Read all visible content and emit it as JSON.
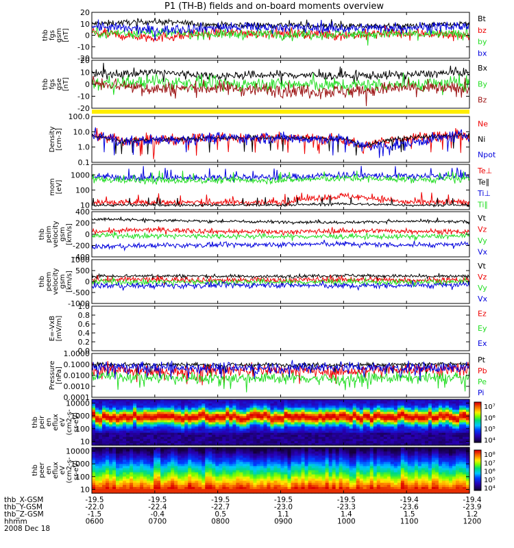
{
  "title": "P1  (TH-B) fields and on-board moments overview",
  "colors": {
    "black": "#000000",
    "red": "#ee0000",
    "green": "#22dd22",
    "blue": "#0000dd",
    "darkred": "#9b1010",
    "yellow": "#ffee00",
    "navy": "#000088"
  },
  "chart_data": [
    {
      "id": "fgs-gsm",
      "type": "line",
      "ylabel_lines": [
        "thb",
        "fgs",
        "gsm",
        "[nT]"
      ],
      "ylim": [
        -20,
        20
      ],
      "yticks": [
        "20",
        "10",
        "0",
        "-10",
        "-20"
      ],
      "series": [
        {
          "name": "Bt",
          "color": "#000000",
          "x": [
            6,
            7,
            8,
            9,
            10,
            11,
            12
          ],
          "values": [
            10,
            12,
            9,
            9,
            8,
            8,
            10
          ]
        },
        {
          "name": "bz",
          "color": "#ee0000",
          "x": [
            6,
            7,
            8,
            9,
            10,
            11,
            12
          ],
          "values": [
            2,
            -2,
            2,
            2,
            0,
            2,
            0
          ]
        },
        {
          "name": "by",
          "color": "#22dd22",
          "x": [
            6,
            7,
            8,
            9,
            10,
            11,
            12
          ],
          "values": [
            2,
            2,
            1,
            1,
            1,
            1,
            1
          ]
        },
        {
          "name": "bx",
          "color": "#0000dd",
          "x": [
            6,
            7,
            8,
            9,
            10,
            11,
            12
          ],
          "values": [
            8,
            4,
            7,
            7,
            6,
            7,
            8
          ]
        }
      ]
    },
    {
      "id": "fgs-gse",
      "type": "line",
      "ylabel_lines": [
        "thb",
        "fgs",
        "gse",
        "[nT]"
      ],
      "ylim": [
        -20,
        20
      ],
      "yticks": [
        "20",
        "10",
        "0",
        "-10",
        "-20"
      ],
      "series": [
        {
          "name": "Bx",
          "color": "#000000",
          "x": [
            6,
            7,
            8,
            9,
            10,
            11,
            12
          ],
          "values": [
            8,
            10,
            7,
            8,
            7,
            8,
            10
          ]
        },
        {
          "name": "By",
          "color": "#22dd22",
          "x": [
            6,
            7,
            8,
            9,
            10,
            11,
            12
          ],
          "values": [
            0,
            2,
            0,
            0,
            -1,
            0,
            1
          ]
        },
        {
          "name": "Bz",
          "color": "#9b1010",
          "x": [
            6,
            7,
            8,
            9,
            10,
            11,
            12
          ],
          "values": [
            2,
            -4,
            -3,
            -5,
            -6,
            -3,
            -4
          ]
        }
      ]
    },
    {
      "id": "density",
      "type": "line",
      "scale": "log",
      "ylabel_lines": [
        "Density",
        "[cm-3]"
      ],
      "ylim": [
        0.1,
        100
      ],
      "yticks": [
        "100.0",
        "10.0",
        "1.0",
        "0.1"
      ],
      "series": [
        {
          "name": "Ne",
          "color": "#ee0000",
          "x": [
            6,
            6.5,
            7,
            8,
            9,
            10,
            10.3,
            11,
            12
          ],
          "values": [
            6,
            2,
            3,
            4,
            4,
            3,
            0.8,
            4,
            6
          ]
        },
        {
          "name": "Ni",
          "color": "#000000",
          "x": [
            6,
            6.5,
            7,
            8,
            9,
            10,
            10.3,
            11,
            12
          ],
          "values": [
            5,
            2.5,
            3,
            4,
            4,
            3.5,
            1,
            4,
            6
          ]
        },
        {
          "name": "Npot",
          "color": "#0000dd",
          "x": [
            6,
            6.5,
            7,
            8,
            9,
            10,
            10.3,
            11,
            12
          ],
          "values": [
            6,
            2,
            3,
            4,
            4,
            3,
            1,
            1.5,
            6
          ]
        }
      ]
    },
    {
      "id": "temperature",
      "type": "line",
      "scale": "log",
      "ylabel_lines": [
        "mom",
        "[eV]"
      ],
      "ylim": [
        5,
        5000
      ],
      "yticks": [
        "1000",
        "100",
        "10"
      ],
      "series": [
        {
          "name": "Te⊥",
          "color": "#ee0000",
          "x": [
            6,
            7,
            8,
            9,
            10,
            11,
            12
          ],
          "values": [
            15,
            15,
            15,
            15,
            40,
            15,
            15
          ]
        },
        {
          "name": "Te∥",
          "color": "#000000",
          "x": [
            6,
            7,
            8,
            9,
            10,
            11,
            12
          ],
          "values": [
            10,
            10,
            10,
            10,
            12,
            10,
            10
          ]
        },
        {
          "name": "Ti⊥",
          "color": "#0000dd",
          "x": [
            6,
            7,
            8,
            9,
            10,
            11,
            12
          ],
          "values": [
            800,
            600,
            700,
            700,
            1000,
            800,
            800
          ]
        },
        {
          "name": "Ti∥",
          "color": "#22dd22",
          "x": [
            6,
            7,
            8,
            9,
            10,
            11,
            12
          ],
          "values": [
            500,
            400,
            450,
            450,
            600,
            500,
            500
          ]
        }
      ]
    },
    {
      "id": "peim-velocity",
      "type": "line",
      "ylabel_lines": [
        "thb",
        "peim",
        "velocity",
        "gsm",
        "[km/s]"
      ],
      "ylim": [
        -400,
        400
      ],
      "yticks": [
        "400",
        "200",
        "0",
        "-200",
        "-400"
      ],
      "series": [
        {
          "name": "Vt",
          "color": "#000000",
          "x": [
            6,
            7,
            8,
            9,
            10,
            11,
            12
          ],
          "values": [
            270,
            250,
            230,
            220,
            210,
            230,
            220
          ]
        },
        {
          "name": "Vz",
          "color": "#ee0000",
          "x": [
            6,
            7,
            8,
            9,
            10,
            11,
            12
          ],
          "values": [
            50,
            80,
            50,
            40,
            60,
            60,
            40
          ]
        },
        {
          "name": "Vy",
          "color": "#22dd22",
          "x": [
            6,
            7,
            8,
            9,
            10,
            11,
            12
          ],
          "values": [
            -20,
            -30,
            -30,
            -40,
            -40,
            -40,
            -30
          ]
        },
        {
          "name": "Vx",
          "color": "#0000dd",
          "x": [
            6,
            7,
            8,
            9,
            10,
            11,
            12
          ],
          "values": [
            -220,
            -200,
            -190,
            -180,
            -170,
            -190,
            -180
          ]
        }
      ]
    },
    {
      "id": "peem-velocity",
      "type": "line",
      "ylabel_lines": [
        "thb",
        "peem",
        "velocity",
        "gsm",
        "[km/s]"
      ],
      "ylim": [
        -1000,
        1000
      ],
      "yticks": [
        "1000",
        "500",
        "0",
        "-500",
        "-1000"
      ],
      "series": [
        {
          "name": "Vt",
          "color": "#000000",
          "x": [
            6,
            7,
            8,
            9,
            10,
            11,
            12
          ],
          "values": [
            250,
            260,
            240,
            230,
            280,
            240,
            230
          ]
        },
        {
          "name": "Vz",
          "color": "#ee0000",
          "x": [
            6,
            7,
            8,
            9,
            10,
            11,
            12
          ],
          "values": [
            80,
            90,
            70,
            60,
            100,
            70,
            60
          ]
        },
        {
          "name": "Vy",
          "color": "#22dd22",
          "x": [
            6,
            7,
            8,
            9,
            10,
            11,
            12
          ],
          "values": [
            -20,
            -30,
            -20,
            -30,
            -20,
            -30,
            -20
          ]
        },
        {
          "name": "Vx",
          "color": "#0000dd",
          "x": [
            6,
            7,
            8,
            9,
            10,
            11,
            12
          ],
          "values": [
            -180,
            -200,
            -170,
            -160,
            -200,
            -170,
            -160
          ]
        }
      ]
    },
    {
      "id": "efield",
      "type": "line",
      "ylabel_lines": [
        "E=-VxB",
        "[mV/m]"
      ],
      "ylim": [
        0,
        1
      ],
      "yticks": [
        "1.0",
        "0.8",
        "0.6",
        "0.4",
        "0.2",
        "0.0"
      ],
      "series": [
        {
          "name": "Ez",
          "color": "#ee0000",
          "x": [],
          "values": []
        },
        {
          "name": "Ey",
          "color": "#22dd22",
          "x": [],
          "values": []
        },
        {
          "name": "Ex",
          "color": "#0000dd",
          "x": [],
          "values": []
        }
      ]
    },
    {
      "id": "pressure",
      "type": "line",
      "scale": "log",
      "ylabel_lines": [
        "Pressure",
        "[nPa]"
      ],
      "ylim": [
        0.0001,
        1
      ],
      "yticks": [
        "1.0000",
        "0.1000",
        "0.0100",
        "0.0010",
        "0.0001"
      ],
      "series": [
        {
          "name": "Pt",
          "color": "#000000",
          "x": [
            6,
            7,
            8,
            9,
            10,
            11,
            12
          ],
          "values": [
            0.1,
            0.1,
            0.09,
            0.09,
            0.09,
            0.1,
            0.1
          ]
        },
        {
          "name": "Pb",
          "color": "#ee0000",
          "x": [
            6,
            7,
            8,
            9,
            10,
            11,
            12
          ],
          "values": [
            0.04,
            0.02,
            0.03,
            0.03,
            0.02,
            0.04,
            0.04
          ]
        },
        {
          "name": "Pe",
          "color": "#22dd22",
          "x": [
            6,
            7,
            8,
            9,
            10,
            11,
            12
          ],
          "values": [
            0.01,
            0.006,
            0.006,
            0.006,
            0.005,
            0.006,
            0.006
          ]
        },
        {
          "name": "Pi",
          "color": "#0000dd",
          "x": [
            6,
            7,
            8,
            9,
            10,
            11,
            12
          ],
          "values": [
            0.06,
            0.05,
            0.05,
            0.05,
            0.06,
            0.05,
            0.05
          ]
        }
      ]
    },
    {
      "id": "peir-spectrogram",
      "type": "heatmap",
      "scale": "log",
      "ylabel_lines": [
        "thb",
        "peir",
        "en",
        "eflux",
        "eV",
        "(cm2-s-",
        "sr-eV)"
      ],
      "ylim": [
        5,
        20000
      ],
      "yticks": [
        "10000",
        "1000",
        "100",
        "10"
      ],
      "colorbar": {
        "ticks": [
          "10⁷",
          "10⁶",
          "10⁵",
          "10⁴"
        ],
        "range": [
          3000,
          20000000
        ]
      },
      "peak_energy_eV": 800
    },
    {
      "id": "peer-spectrogram",
      "type": "heatmap",
      "scale": "log",
      "ylabel_lines": [
        "thb",
        "peer",
        "en",
        "eflux",
        "eV",
        "(cm2-s-",
        "sr-eV)"
      ],
      "ylim": [
        5,
        20000
      ],
      "yticks": [
        "10000",
        "1000",
        "100",
        "10"
      ],
      "colorbar": {
        "ticks": [
          "10⁸",
          "10⁷",
          "10⁶",
          "10⁵",
          "10⁴"
        ],
        "range": [
          3000,
          300000000
        ]
      },
      "peak_energy_eV": 8
    }
  ],
  "xaxis": {
    "time_ticks": [
      "0600",
      "0700",
      "0800",
      "0900",
      "1000",
      "1100",
      "1200"
    ],
    "rows": [
      {
        "label": "thb_X-GSM",
        "values": [
          "-19.5",
          "-19.5",
          "-19.5",
          "-19.5",
          "-19.5",
          "-19.4",
          "-19.4"
        ]
      },
      {
        "label": "thb_Y-GSM",
        "values": [
          "-22.0",
          "-22.4",
          "-22.7",
          "-23.0",
          "-23.3",
          "-23.6",
          "-23.9"
        ]
      },
      {
        "label": "thb_Z-GSM",
        "values": [
          "-1.5",
          "-0.4",
          "0.5",
          "1.1",
          "1.4",
          "1.5",
          "1.2"
        ]
      },
      {
        "label": "hhmm",
        "values": [
          "0600",
          "0700",
          "0800",
          "0900",
          "1000",
          "1100",
          "1200"
        ]
      }
    ],
    "date": "2008 Dec 18"
  }
}
